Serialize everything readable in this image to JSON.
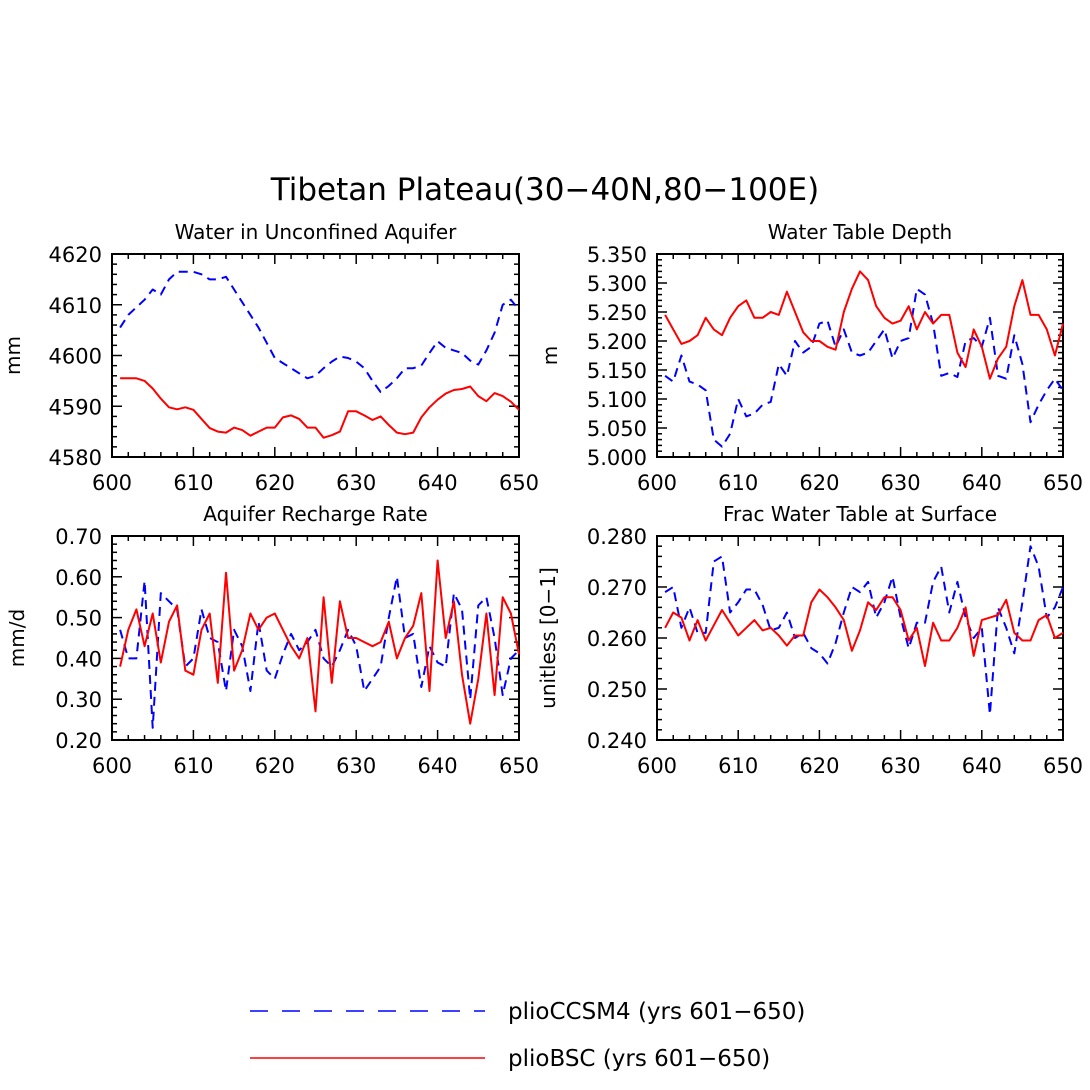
{
  "chart_data": {
    "title": "Tibetan Plateau(30−40N,80−100E)",
    "legend": [
      {
        "name": "plioCCSM4 (yrs 601−650)",
        "color": "#0000ff",
        "dash": true
      },
      {
        "name": "plioBSC (yrs 601−650)",
        "color": "#ff0000",
        "dash": false
      }
    ],
    "panels": [
      {
        "type": "line",
        "title": "Water in Unconfined Aquifer",
        "ylabel": "mm",
        "xlim": [
          600,
          650
        ],
        "ylim": [
          4580,
          4620
        ],
        "xticks": [
          "600",
          "610",
          "620",
          "630",
          "640",
          "650"
        ],
        "yticks": [
          "4580",
          "4590",
          "4600",
          "4610",
          "4620"
        ],
        "x_start": 601,
        "series": [
          {
            "name": "plioCCSM4",
            "values": [
              4605.5,
              4608,
              4609.5,
              4611,
              4613,
              4612,
              4615,
              4616.5,
              4616.5,
              4616.5,
              4616,
              4615,
              4615,
              4615.5,
              4613,
              4610.5,
              4608,
              4605.5,
              4602.5,
              4599.5,
              4598.5,
              4597.5,
              4596.5,
              4595.5,
              4596,
              4597.5,
              4598.8,
              4599.8,
              4599.5,
              4598.8,
              4597.5,
              4595,
              4592.8,
              4594,
              4595.5,
              4597.5,
              4597.5,
              4598,
              4600.5,
              4602.8,
              4601.5,
              4601,
              4600.5,
              4599,
              4598.2,
              4601,
              4604.5,
              4610,
              4611,
              4609
            ]
          },
          {
            "name": "plioBSC",
            "values": [
              4595.5,
              4595.5,
              4595.5,
              4595,
              4593.5,
              4591.5,
              4589.8,
              4589.4,
              4589.8,
              4589.3,
              4587.5,
              4585.7,
              4585,
              4584.8,
              4585.8,
              4585.3,
              4584.2,
              4585,
              4585.8,
              4585.8,
              4587.8,
              4588.2,
              4587.5,
              4585.8,
              4585.8,
              4583.8,
              4584.3,
              4585,
              4589,
              4589,
              4588.2,
              4587.3,
              4588,
              4586.3,
              4584.8,
              4584.5,
              4584.8,
              4587.8,
              4589.8,
              4591.3,
              4592.5,
              4593.2,
              4593.4,
              4593.9,
              4592,
              4591,
              4592.6,
              4592,
              4590.9,
              4589.3
            ]
          }
        ]
      },
      {
        "type": "line",
        "title": "Water Table Depth",
        "ylabel": "m",
        "xlim": [
          600,
          650
        ],
        "ylim": [
          5.0,
          5.35
        ],
        "xticks": [
          "600",
          "610",
          "620",
          "630",
          "640",
          "650"
        ],
        "yticks": [
          "5.000",
          "5.050",
          "5.100",
          "5.150",
          "5.200",
          "5.250",
          "5.300",
          "5.350"
        ],
        "x_start": 601,
        "series": [
          {
            "name": "plioCCSM4",
            "values": [
              5.14,
              5.13,
              5.175,
              5.13,
              5.125,
              5.115,
              5.03,
              5.018,
              5.04,
              5.1,
              5.07,
              5.075,
              5.09,
              5.095,
              5.16,
              5.14,
              5.2,
              5.18,
              5.19,
              5.23,
              5.235,
              5.19,
              5.22,
              5.18,
              5.175,
              5.18,
              5.2,
              5.22,
              5.17,
              5.2,
              5.205,
              5.29,
              5.28,
              5.23,
              5.14,
              5.145,
              5.138,
              5.2,
              5.205,
              5.19,
              5.24,
              5.14,
              5.135,
              5.21,
              5.16,
              5.06,
              5.09,
              5.115,
              5.135,
              5.115
            ]
          },
          {
            "name": "plioBSC",
            "values": [
              5.245,
              5.22,
              5.195,
              5.2,
              5.21,
              5.24,
              5.22,
              5.21,
              5.24,
              5.26,
              5.27,
              5.24,
              5.24,
              5.25,
              5.245,
              5.285,
              5.25,
              5.215,
              5.2,
              5.2,
              5.19,
              5.185,
              5.25,
              5.29,
              5.32,
              5.305,
              5.26,
              5.24,
              5.23,
              5.235,
              5.26,
              5.22,
              5.25,
              5.23,
              5.245,
              5.245,
              5.18,
              5.155,
              5.22,
              5.19,
              5.135,
              5.17,
              5.19,
              5.26,
              5.305,
              5.245,
              5.245,
              5.22,
              5.175,
              5.23
            ]
          }
        ]
      },
      {
        "type": "line",
        "title": "Aquifer Recharge Rate",
        "ylabel": "mm/d",
        "xlim": [
          600,
          650
        ],
        "ylim": [
          0.2,
          0.7
        ],
        "xticks": [
          "600",
          "610",
          "620",
          "630",
          "640",
          "650"
        ],
        "yticks": [
          "0.20",
          "0.30",
          "0.40",
          "0.50",
          "0.60",
          "0.70"
        ],
        "x_start": 601,
        "series": [
          {
            "name": "plioCCSM4",
            "values": [
              0.47,
              0.4,
              0.4,
              0.59,
              0.23,
              0.56,
              0.54,
              0.52,
              0.38,
              0.4,
              0.52,
              0.45,
              0.44,
              0.32,
              0.47,
              0.43,
              0.32,
              0.49,
              0.37,
              0.35,
              0.41,
              0.46,
              0.42,
              0.44,
              0.47,
              0.4,
              0.38,
              0.42,
              0.47,
              0.43,
              0.32,
              0.35,
              0.38,
              0.5,
              0.6,
              0.45,
              0.46,
              0.33,
              0.43,
              0.39,
              0.38,
              0.56,
              0.52,
              0.3,
              0.53,
              0.55,
              0.45,
              0.31,
              0.4,
              0.42
            ]
          },
          {
            "name": "plioBSC",
            "values": [
              0.38,
              0.47,
              0.52,
              0.43,
              0.51,
              0.39,
              0.49,
              0.53,
              0.37,
              0.36,
              0.47,
              0.51,
              0.34,
              0.61,
              0.37,
              0.42,
              0.51,
              0.47,
              0.5,
              0.51,
              0.47,
              0.43,
              0.4,
              0.45,
              0.27,
              0.55,
              0.34,
              0.54,
              0.45,
              0.45,
              0.44,
              0.43,
              0.44,
              0.49,
              0.4,
              0.45,
              0.48,
              0.56,
              0.32,
              0.64,
              0.45,
              0.54,
              0.36,
              0.24,
              0.35,
              0.51,
              0.31,
              0.55,
              0.51,
              0.41
            ]
          }
        ]
      },
      {
        "type": "line",
        "title": "Frac Water Table at Surface",
        "ylabel": "unitless [0−1]",
        "xlim": [
          600,
          650
        ],
        "ylim": [
          0.24,
          0.28
        ],
        "xticks": [
          "600",
          "610",
          "620",
          "630",
          "640",
          "650"
        ],
        "yticks": [
          "0.240",
          "0.250",
          "0.260",
          "0.270",
          "0.280"
        ],
        "x_start": 601,
        "series": [
          {
            "name": "plioCCSM4",
            "values": [
              0.269,
              0.27,
              0.262,
              0.266,
              0.261,
              0.261,
              0.275,
              0.276,
              0.265,
              0.267,
              0.2695,
              0.2695,
              0.2665,
              0.2615,
              0.262,
              0.265,
              0.26,
              0.261,
              0.258,
              0.257,
              0.255,
              0.259,
              0.265,
              0.27,
              0.269,
              0.271,
              0.264,
              0.267,
              0.272,
              0.264,
              0.258,
              0.263,
              0.263,
              0.271,
              0.274,
              0.265,
              0.271,
              0.264,
              0.26,
              0.262,
              0.245,
              0.266,
              0.262,
              0.257,
              0.267,
              0.278,
              0.274,
              0.264,
              0.266,
              0.27
            ]
          },
          {
            "name": "plioBSC",
            "values": [
              0.262,
              0.265,
              0.264,
              0.2595,
              0.2635,
              0.2595,
              0.2625,
              0.2655,
              0.263,
              0.2605,
              0.262,
              0.2635,
              0.2615,
              0.262,
              0.2605,
              0.2585,
              0.2605,
              0.2605,
              0.267,
              0.2695,
              0.268,
              0.266,
              0.2635,
              0.2575,
              0.2615,
              0.267,
              0.2655,
              0.268,
              0.268,
              0.2655,
              0.2595,
              0.262,
              0.2545,
              0.263,
              0.2595,
              0.2595,
              0.262,
              0.266,
              0.2565,
              0.2635,
              0.264,
              0.2645,
              0.2675,
              0.261,
              0.2595,
              0.2595,
              0.2635,
              0.2645,
              0.26,
              0.261
            ]
          }
        ]
      }
    ]
  }
}
